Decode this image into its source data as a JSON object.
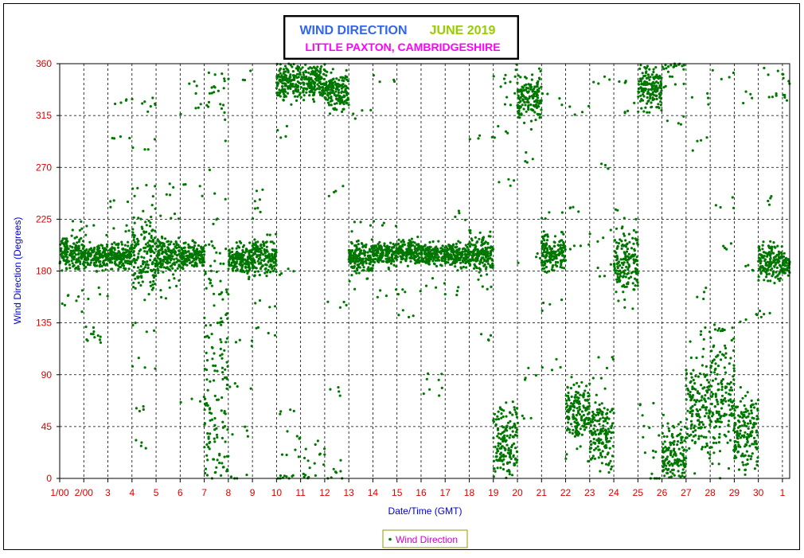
{
  "chart_data": {
    "type": "scatter",
    "title_parts": [
      {
        "text": "WIND DIRECTION",
        "color": "#3366ee"
      },
      {
        "text": "JUNE 2019",
        "color": "#99cc00"
      }
    ],
    "subtitle": "LITTLE PAXTON, CAMBRIDGESHIRE",
    "subtitle_color": "#ff00ff",
    "xlabel": "Date/Time (GMT)",
    "ylabel": "Wind Direction (Degrees)",
    "ylim": [
      0,
      360
    ],
    "yticks": [
      0,
      45,
      90,
      135,
      180,
      225,
      270,
      315,
      360
    ],
    "xlim": [
      0,
      30.3
    ],
    "xtick_values": [
      0,
      1,
      2,
      3,
      4,
      5,
      6,
      7,
      8,
      9,
      10,
      11,
      12,
      13,
      14,
      15,
      16,
      17,
      18,
      19,
      20,
      21,
      22,
      23,
      24,
      25,
      26,
      27,
      28,
      29,
      30
    ],
    "xtick_labels": [
      "1/00",
      "2/00",
      "3",
      "4",
      "5",
      "6",
      "7",
      "8",
      "9",
      "10",
      "11",
      "12",
      "13",
      "14",
      "15",
      "16",
      "17",
      "18",
      "19",
      "20",
      "21",
      "22",
      "23",
      "24",
      "25",
      "26",
      "27",
      "28",
      "29",
      "30",
      "1"
    ],
    "grid": true,
    "grid_style": "dashed",
    "legend_position": "bottom-center",
    "series": [
      {
        "name": "Wind Direction",
        "color": "#007700",
        "note_x_units": "days since 1 June 2019 00:00 GMT",
        "daily_segments": [
          {
            "start": 0.0,
            "end": 1.0,
            "center": 195,
            "spread": 10,
            "outliers": [
              150,
              160,
              220,
              210
            ]
          },
          {
            "start": 1.0,
            "end": 2.0,
            "center": 193,
            "spread": 8,
            "outliers": [
              120,
              125,
              130,
              160,
              215
            ]
          },
          {
            "start": 2.0,
            "end": 3.0,
            "center": 193,
            "spread": 8,
            "outliers": [
              330,
              300,
              240,
              220
            ]
          },
          {
            "start": 3.0,
            "end": 4.0,
            "center": 190,
            "spread": 25,
            "outliers": [
              30,
              60,
              100,
              130,
              240,
              250,
              290,
              320,
              330
            ]
          },
          {
            "start": 4.0,
            "end": 5.0,
            "center": 193,
            "spread": 12,
            "outliers": [
              160,
              170,
              230,
              250
            ]
          },
          {
            "start": 5.0,
            "end": 6.0,
            "center": 193,
            "spread": 8,
            "outliers": [
              320,
              340,
              250,
              70
            ]
          },
          {
            "start": 6.0,
            "end": 7.0,
            "center": 100,
            "spread": 120,
            "outliers": [
              0,
              10,
              30,
              60,
              320,
              345
            ]
          },
          {
            "start": 7.0,
            "end": 8.0,
            "center": 190,
            "spread": 10,
            "outliers": [
              0,
              40,
              80,
              120,
              350
            ]
          },
          {
            "start": 8.0,
            "end": 9.0,
            "center": 193,
            "spread": 12,
            "outliers": [
              130,
              150,
              230,
              245
            ]
          },
          {
            "start": 9.0,
            "end": 10.0,
            "center": 345,
            "spread": 12,
            "outliers": [
              0,
              20,
              40,
              60,
              180,
              300
            ]
          },
          {
            "start": 10.0,
            "end": 11.0,
            "center": 345,
            "spread": 12,
            "outliers": [
              0,
              10,
              20,
              30
            ]
          },
          {
            "start": 11.0,
            "end": 12.0,
            "center": 335,
            "spread": 12,
            "outliers": [
              0,
              10,
              75,
              150,
              250
            ]
          },
          {
            "start": 12.0,
            "end": 13.0,
            "center": 192,
            "spread": 10,
            "outliers": [
              170,
              220,
              315
            ]
          },
          {
            "start": 13.0,
            "end": 14.0,
            "center": 195,
            "spread": 8,
            "outliers": [
              225,
              160,
              345
            ]
          },
          {
            "start": 14.0,
            "end": 15.0,
            "center": 197,
            "spread": 8,
            "outliers": [
              140,
              165
            ]
          },
          {
            "start": 15.0,
            "end": 16.0,
            "center": 194,
            "spread": 7,
            "outliers": [
              75,
              90,
              170
            ]
          },
          {
            "start": 16.0,
            "end": 17.0,
            "center": 194,
            "spread": 8,
            "outliers": [
              230,
              165
            ]
          },
          {
            "start": 17.0,
            "end": 18.0,
            "center": 195,
            "spread": 12,
            "outliers": [
              170,
              210,
              120,
              300
            ]
          },
          {
            "start": 18.0,
            "end": 19.0,
            "center": 30,
            "spread": 25,
            "outliers": [
              260,
              300,
              330,
              345
            ]
          },
          {
            "start": 19.0,
            "end": 20.0,
            "center": 330,
            "spread": 15,
            "outliers": [
              50,
              90,
              280,
              190
            ]
          },
          {
            "start": 20.0,
            "end": 21.0,
            "center": 195,
            "spread": 12,
            "outliers": [
              100,
              150,
              230,
              330
            ]
          },
          {
            "start": 21.0,
            "end": 22.0,
            "center": 60,
            "spread": 20,
            "outliers": [
              200,
              230,
              320,
              20
            ]
          },
          {
            "start": 22.0,
            "end": 23.0,
            "center": 40,
            "spread": 25,
            "outliers": [
              100,
              180,
              210,
              270,
              345
            ]
          },
          {
            "start": 23.0,
            "end": 24.0,
            "center": 190,
            "spread": 20,
            "outliers": [
              150,
              230,
              320,
              340
            ]
          },
          {
            "start": 24.0,
            "end": 25.0,
            "center": 340,
            "spread": 15,
            "outliers": [
              0,
              20,
              40,
              60
            ]
          },
          {
            "start": 25.0,
            "end": 26.0,
            "center": 20,
            "spread": 20,
            "outliers": [
              45,
              310,
              340
            ]
          },
          {
            "start": 26.0,
            "end": 27.0,
            "center": 60,
            "spread": 35,
            "outliers": [
              130,
              160,
              290,
              330
            ]
          },
          {
            "start": 27.0,
            "end": 28.0,
            "center": 70,
            "spread": 40,
            "outliers": [
              130,
              200,
              240,
              350
            ]
          },
          {
            "start": 28.0,
            "end": 29.0,
            "center": 40,
            "spread": 25,
            "outliers": [
              140,
              180,
              330
            ]
          },
          {
            "start": 29.0,
            "end": 30.0,
            "center": 188,
            "spread": 12,
            "outliers": [
              140,
              240,
              330,
              355
            ]
          },
          {
            "start": 30.0,
            "end": 30.3,
            "center": 185,
            "spread": 8,
            "outliers": [
              330,
              345
            ]
          }
        ]
      }
    ]
  }
}
